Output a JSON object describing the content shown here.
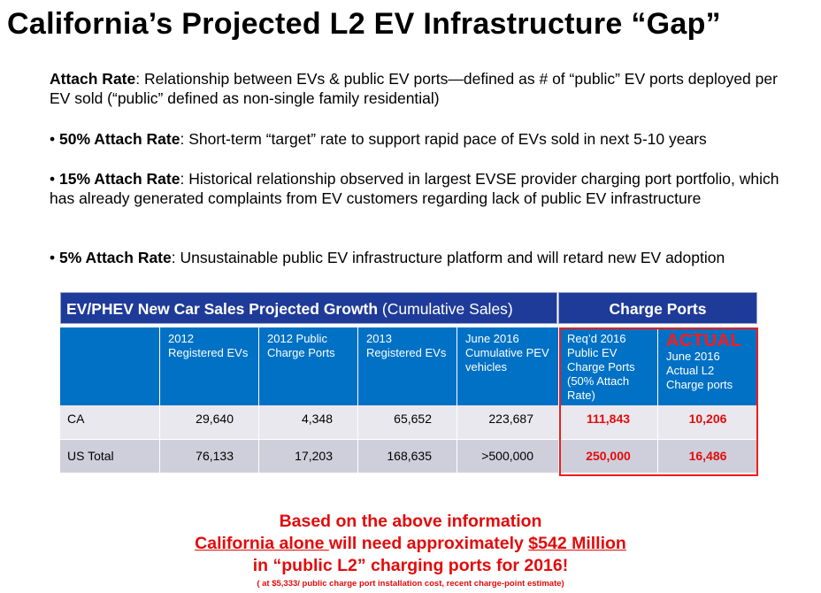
{
  "title": "California’s Projected L2 EV Infrastructure “Gap”",
  "paragraphs": {
    "p1_bold": "Attach Rate",
    "p1_text": ": Relationship between EVs & public EV ports—defined as # of “public” EV ports deployed per EV sold (“public” defined as non-single family residential)",
    "p2_bullet": "• ",
    "p2_bold": "50% Attach Rate",
    "p2_text": ": Short-term “target” rate to support rapid pace of EVs sold in next 5-10 years",
    "p3_bullet": "• ",
    "p3_bold": "15% Attach Rate",
    "p3_text": ": Historical relationship observed in largest EVSE provider charging port portfolio, which has already generated complaints from EV customers regarding lack of public EV infrastructure",
    "p4_bullet": "• ",
    "p4_bold": "5% Attach Rate",
    "p4_text": ": Unsustainable public EV infrastructure platform and will retard new EV adoption"
  },
  "table": {
    "header_left_bold": "EV/PHEV New Car Sales Projected Growth",
    "header_left_normal": " (Cumulative Sales)",
    "header_right": "Charge Ports",
    "columns": [
      "2012 Registered EVs",
      "2012 Public Charge Ports",
      "2013 Registered EVs",
      "June 2016 Cumulative PEV vehicles",
      "Req’d 2016 Public EV Charge Ports (50% Attach Rate)",
      "June 2016 Actual L2 Charge ports"
    ],
    "actual_label": "ACTUAL",
    "rows": [
      {
        "label": "CA",
        "values": [
          "29,640",
          "4,348",
          "65,652",
          "223,687",
          "111,843",
          "10,206"
        ]
      },
      {
        "label": "US Total",
        "values": [
          "76,133",
          "17,203",
          "168,635",
          ">500,000",
          "250,000",
          "16,486"
        ]
      }
    ]
  },
  "bottom": {
    "line1": "Based on the above information",
    "line2_u1": "California alone ",
    "line2_mid": "will need approximately ",
    "line2_u2": "$542 Million",
    "line3": "in “public L2” charging ports for 2016!",
    "footnote": "( at $5,333/ public charge port installation cost, recent charge-point estimate)"
  },
  "colors": {
    "header_blue": "#1f3b99",
    "column_blue": "#0071c5",
    "highlight_red": "#e30b0b"
  }
}
